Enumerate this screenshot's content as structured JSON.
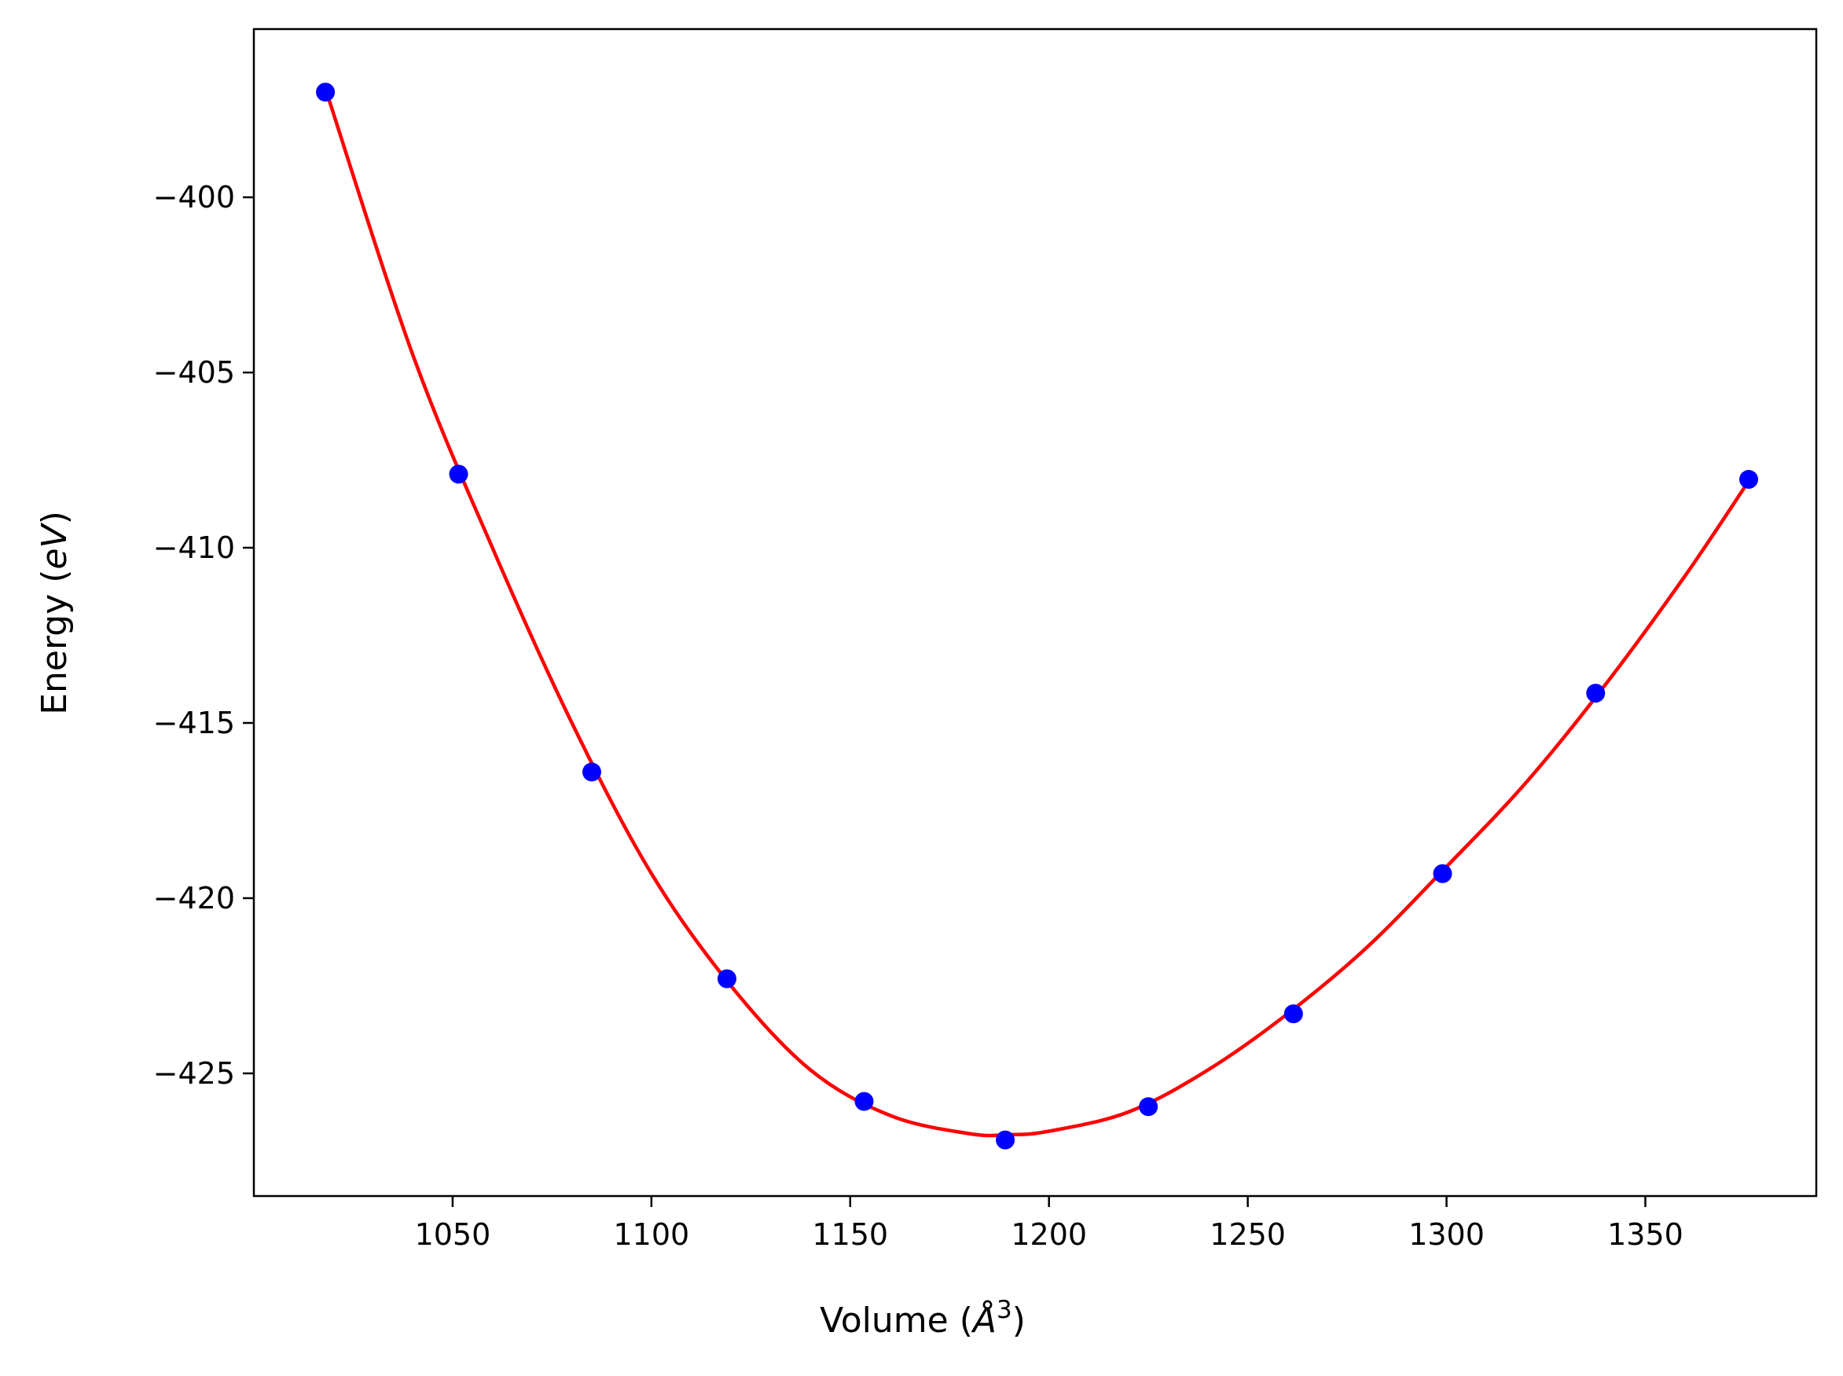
{
  "chart_data": {
    "type": "scatter",
    "title": "",
    "xlabel": "Volume ($\\AA^3$)",
    "xlabel_parts": {
      "prefix": "Volume (",
      "symbol": "Å",
      "superscript": "3",
      "suffix": ")"
    },
    "ylabel": "Energy ($eV$)",
    "ylabel_parts": {
      "prefix": "Energy (",
      "italic": "eV",
      "suffix": ")"
    },
    "xlim": [
      1000,
      1393
    ],
    "ylim": [
      -428.5,
      -395.2
    ],
    "xticks": [
      1050,
      1100,
      1150,
      1200,
      1250,
      1300,
      1350
    ],
    "xtick_labels": [
      "1050",
      "1100",
      "1150",
      "1200",
      "1250",
      "1300",
      "1350"
    ],
    "yticks": [
      -400,
      -405,
      -410,
      -415,
      -420,
      -425
    ],
    "ytick_labels": [
      "−400",
      "−405",
      "−410",
      "−415",
      "−420",
      "−425"
    ],
    "grid": false,
    "legend": "none",
    "series": [
      {
        "kind": "points",
        "color": "#0000ff",
        "x": [
          1018.0,
          1051.5,
          1085.0,
          1119.0,
          1153.5,
          1189.0,
          1225.0,
          1261.5,
          1299.0,
          1337.5,
          1376.0
        ],
        "y": [
          -397.0,
          -407.9,
          -416.4,
          -422.3,
          -425.8,
          -426.9,
          -425.95,
          -423.3,
          -419.3,
          -414.15,
          -408.05
        ]
      },
      {
        "kind": "fit-line",
        "color": "#ff0000",
        "x": [
          1018.0,
          1040.0,
          1060.0,
          1080.0,
          1100.0,
          1120.0,
          1140.0,
          1160.0,
          1180.0,
          1190.0,
          1200.0,
          1220.0,
          1240.0,
          1260.0,
          1280.0,
          1300.0,
          1320.0,
          1340.0,
          1360.0,
          1376.0
        ],
        "y": [
          -396.9,
          -404.5,
          -410.0,
          -415.0,
          -419.3,
          -422.5,
          -424.9,
          -426.2,
          -426.72,
          -426.75,
          -426.65,
          -426.1,
          -424.9,
          -423.3,
          -421.4,
          -419.1,
          -416.7,
          -413.9,
          -410.8,
          -408.1
        ]
      }
    ]
  }
}
